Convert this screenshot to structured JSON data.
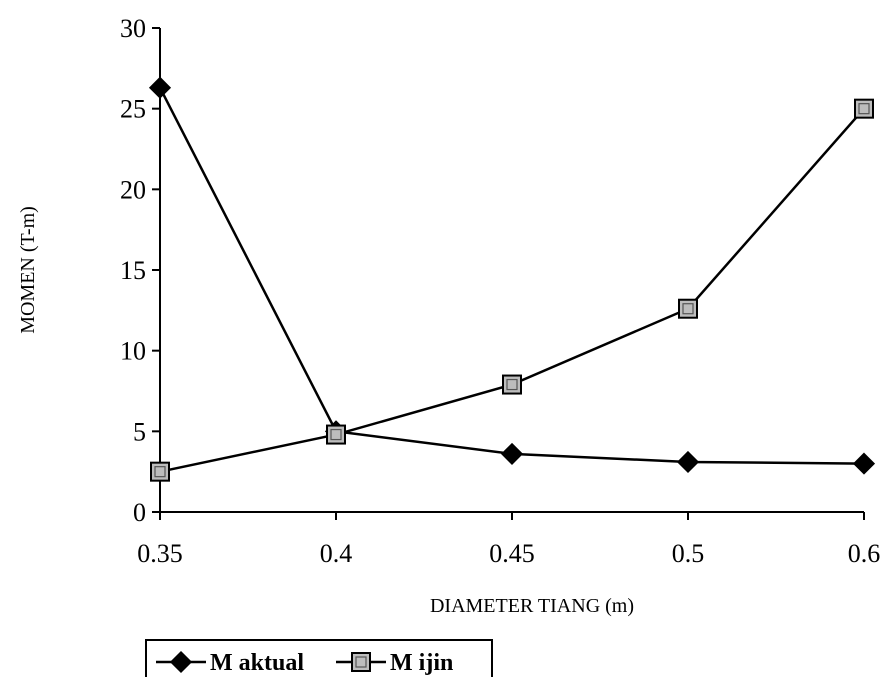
{
  "chart_data": {
    "type": "line",
    "categories": [
      "0.35",
      "0.4",
      "0.45",
      "0.5",
      "0.6"
    ],
    "y_ticks": [
      "0",
      "5",
      "10",
      "15",
      "20",
      "25",
      "30"
    ],
    "ylim": [
      0,
      30
    ],
    "xlabel": "DIAMETER TIANG (m)",
    "ylabel": "MOMEN (T-m)",
    "grid": false,
    "legend_position": "bottom-left",
    "series": [
      {
        "name": "M aktual",
        "marker": "diamond",
        "color": "#000000",
        "values": [
          26.3,
          5.0,
          3.6,
          3.1,
          3.0
        ]
      },
      {
        "name": "M ijin",
        "marker": "square",
        "color": "#000000",
        "values": [
          2.5,
          4.8,
          7.9,
          12.6,
          25.0
        ]
      }
    ]
  }
}
